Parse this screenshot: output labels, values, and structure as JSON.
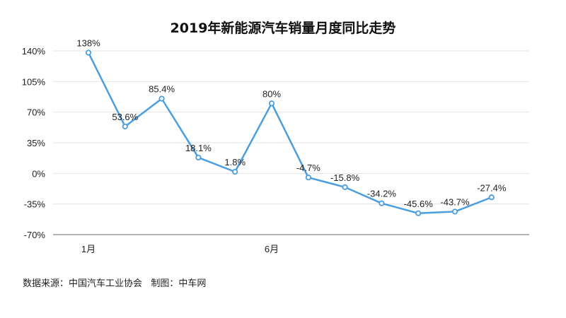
{
  "chart_data": {
    "type": "line",
    "title": "2019年新能源汽车销量月度同比走势",
    "x": [
      "1",
      "2",
      "3",
      "4",
      "5",
      "6",
      "7",
      "8",
      "9",
      "10",
      "11",
      "12"
    ],
    "x_tick_labels": [
      "1月",
      "",
      "",
      "",
      "",
      "6月",
      "",
      "",
      "",
      "",
      "",
      ""
    ],
    "series": [
      {
        "values": [
          138,
          53.6,
          85.4,
          18.1,
          1.8,
          80,
          -4.7,
          -15.8,
          -34.2,
          -45.6,
          -43.7,
          -27.4
        ],
        "data_labels": [
          "138%",
          "53.6%",
          "85.4%",
          "18.1%",
          "1.8%",
          "80%",
          "-4.7%",
          "-15.8%",
          "-34.2%",
          "-45.6%",
          "-43.7%",
          "-27.4%"
        ]
      }
    ],
    "y_ticks": [
      140,
      105,
      70,
      35,
      0,
      -35,
      -70
    ],
    "y_tick_labels": [
      "140%",
      "105%",
      "70%",
      "35%",
      "0%",
      "-35%",
      "-70%"
    ],
    "ylim": [
      -70,
      140
    ],
    "grid": true,
    "line_color": "#4a9ee0"
  },
  "source_note": "数据来源：中国汽车工业协会   制图：中车网"
}
